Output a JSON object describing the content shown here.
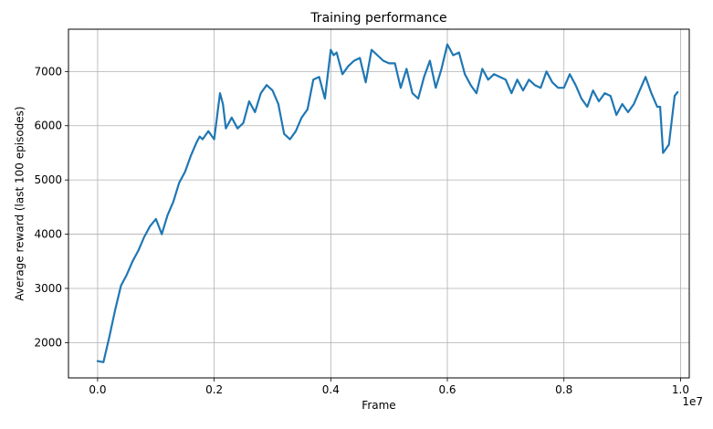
{
  "chart_data": {
    "type": "line",
    "title": "Training performance",
    "xlabel": "Frame",
    "ylabel": "Average reward (last 100 episodes)",
    "x_offset_label": "1e7",
    "xlim": [
      -0.05,
      1.015
    ],
    "ylim": [
      1350,
      7780
    ],
    "x_ticks": [
      0.0,
      0.2,
      0.4,
      0.6,
      0.8,
      1.0
    ],
    "x_tick_labels": [
      "0.0",
      "0.2",
      "0.4",
      "0.6",
      "0.8",
      "1.0"
    ],
    "y_ticks": [
      2000,
      3000,
      4000,
      5000,
      6000,
      7000
    ],
    "y_tick_labels": [
      "2000",
      "3000",
      "4000",
      "5000",
      "6000",
      "7000"
    ],
    "grid": true,
    "legend": "none",
    "colors": {
      "line": "#1f77b4",
      "grid": "#b0b0b0"
    },
    "series": [
      {
        "x": [
          0.0,
          0.01,
          0.02,
          0.03,
          0.04,
          0.05,
          0.06,
          0.07,
          0.08,
          0.09,
          0.1,
          0.11,
          0.12,
          0.13,
          0.14,
          0.15,
          0.16,
          0.17,
          0.175,
          0.18,
          0.19,
          0.2,
          0.21,
          0.215,
          0.22,
          0.23,
          0.24,
          0.25,
          0.26,
          0.27,
          0.28,
          0.29,
          0.3,
          0.31,
          0.32,
          0.33,
          0.34,
          0.35,
          0.36,
          0.37,
          0.38,
          0.39,
          0.4,
          0.405,
          0.41,
          0.42,
          0.43,
          0.44,
          0.45,
          0.46,
          0.47,
          0.48,
          0.49,
          0.5,
          0.51,
          0.52,
          0.53,
          0.54,
          0.55,
          0.56,
          0.57,
          0.58,
          0.59,
          0.6,
          0.61,
          0.62,
          0.63,
          0.64,
          0.65,
          0.66,
          0.67,
          0.68,
          0.69,
          0.7,
          0.71,
          0.72,
          0.73,
          0.74,
          0.75,
          0.76,
          0.77,
          0.78,
          0.79,
          0.8,
          0.81,
          0.82,
          0.83,
          0.84,
          0.85,
          0.86,
          0.87,
          0.88,
          0.89,
          0.9,
          0.91,
          0.92,
          0.93,
          0.94,
          0.95,
          0.96,
          0.965,
          0.97,
          0.98,
          0.99,
          0.995
        ],
        "y": [
          1660,
          1640,
          2100,
          2600,
          3050,
          3250,
          3500,
          3700,
          3950,
          4150,
          4280,
          4000,
          4350,
          4600,
          4950,
          5150,
          5450,
          5700,
          5800,
          5750,
          5900,
          5750,
          6600,
          6400,
          5950,
          6150,
          5950,
          6050,
          6450,
          6250,
          6600,
          6750,
          6650,
          6400,
          5850,
          5750,
          5900,
          6150,
          6300,
          6850,
          6900,
          6500,
          7400,
          7300,
          7350,
          6950,
          7100,
          7200,
          7250,
          6800,
          7400,
          7300,
          7200,
          7150,
          7150,
          6700,
          7050,
          6600,
          6500,
          6900,
          7200,
          6700,
          7050,
          7500,
          7300,
          7350,
          6950,
          6750,
          6600,
          7050,
          6850,
          6950,
          6900,
          6850,
          6600,
          6850,
          6650,
          6850,
          6750,
          6700,
          7000,
          6800,
          6700,
          6700,
          6950,
          6750,
          6500,
          6350,
          6650,
          6450,
          6600,
          6550,
          6200,
          6400,
          6250,
          6400,
          6650,
          6900,
          6600,
          6350,
          6350,
          5500,
          5650,
          6550,
          6620
        ]
      }
    ]
  }
}
